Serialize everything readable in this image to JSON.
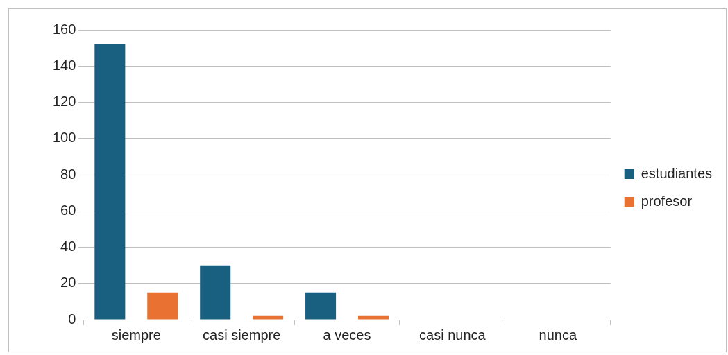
{
  "chart_data": {
    "type": "bar",
    "categories": [
      "siempre",
      "casi siempre",
      "a veces",
      "casi nunca",
      "nunca"
    ],
    "series": [
      {
        "name": "estudiantes",
        "color": "#196080",
        "values": [
          152,
          30,
          15,
          0,
          0
        ]
      },
      {
        "name": "profesor",
        "color": "#e97132",
        "values": [
          15,
          2,
          2,
          0,
          0
        ]
      }
    ],
    "ylim": [
      0,
      160
    ],
    "yticks": [
      0,
      20,
      40,
      60,
      80,
      100,
      120,
      140,
      160
    ],
    "grid": "y",
    "legend": "right"
  }
}
